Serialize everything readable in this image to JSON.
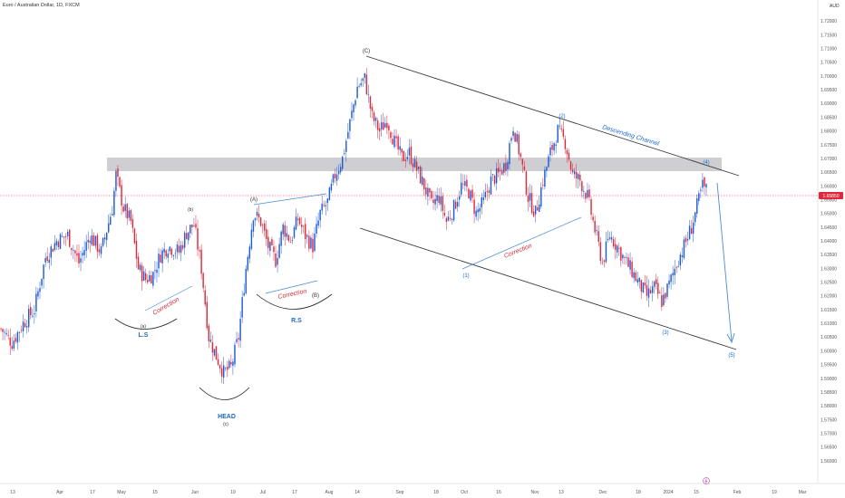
{
  "chart_data": {
    "type": "candlestick",
    "title": "Euro / Australian Dollar, 1D, FXCM",
    "currency": "AUD",
    "last_price": "1.65850",
    "ylim": [
      1.555,
      1.725
    ],
    "y_ticks": [
      "1.72000",
      "1.71500",
      "1.71000",
      "1.70500",
      "1.70000",
      "1.69500",
      "1.69000",
      "1.68500",
      "1.68000",
      "1.67500",
      "1.67000",
      "1.66500",
      "1.66000",
      "1.65500",
      "1.65000",
      "1.64500",
      "1.64000",
      "1.63500",
      "1.63000",
      "1.62500",
      "1.62000",
      "1.61500",
      "1.61000",
      "1.60500",
      "1.60000",
      "1.59500",
      "1.59000",
      "1.58500",
      "1.58000",
      "1.57500",
      "1.57000",
      "1.56500",
      "1.56000"
    ],
    "x_ticks": [
      "13",
      "Apr",
      "17",
      "May",
      "15",
      "Jun",
      "19",
      "Jul",
      "17",
      "Aug",
      "14",
      "Sep",
      "18",
      "Oct",
      "16",
      "Nov",
      "13",
      "Dec",
      "18",
      "2024",
      "15",
      "Feb",
      "19",
      "Mar"
    ],
    "colors": {
      "up": "#1e5bd6",
      "down": "#e0283c",
      "zone": "#c7c7cb",
      "line": "#3a3a3a",
      "trend": "#4a8ad8",
      "label_blue": "#1b6ac9",
      "label_red": "#d42a3a"
    },
    "annotations": {
      "ls": "L.S",
      "head": "HEAD",
      "rs": "R.S",
      "correction": "Correction",
      "descending_channel": "Descending Channel",
      "wave_a_small": "(a)",
      "wave_b_small": "(b)",
      "wave_c_small": "(c)",
      "wave_A": "(A)",
      "wave_B": "(B)",
      "wave_C": "(C)",
      "w1": "(1)",
      "w2": "(2)",
      "w3": "(3)",
      "w4": "(4)",
      "w5": "(5)"
    },
    "ohlc_keypoints": [
      [
        0,
        1.608
      ],
      [
        6,
        1.603
      ],
      [
        12,
        1.61
      ],
      [
        18,
        1.615
      ],
      [
        24,
        1.634
      ],
      [
        30,
        1.64
      ],
      [
        36,
        1.642
      ],
      [
        42,
        1.632
      ],
      [
        48,
        1.642
      ],
      [
        54,
        1.636
      ],
      [
        60,
        1.652
      ],
      [
        62,
        1.664
      ],
      [
        66,
        1.652
      ],
      [
        70,
        1.647
      ],
      [
        74,
        1.63
      ],
      [
        78,
        1.626
      ],
      [
        82,
        1.628
      ],
      [
        86,
        1.635
      ],
      [
        90,
        1.638
      ],
      [
        96,
        1.636
      ],
      [
        100,
        1.643
      ],
      [
        104,
        1.646
      ],
      [
        108,
        1.63
      ],
      [
        112,
        1.605
      ],
      [
        116,
        1.598
      ],
      [
        120,
        1.592
      ],
      [
        124,
        1.594
      ],
      [
        128,
        1.605
      ],
      [
        132,
        1.63
      ],
      [
        136,
        1.65
      ],
      [
        140,
        1.647
      ],
      [
        144,
        1.638
      ],
      [
        148,
        1.633
      ],
      [
        152,
        1.645
      ],
      [
        156,
        1.64
      ],
      [
        160,
        1.648
      ],
      [
        164,
        1.642
      ],
      [
        168,
        1.638
      ],
      [
        172,
        1.65
      ],
      [
        176,
        1.654
      ],
      [
        180,
        1.664
      ],
      [
        184,
        1.67
      ],
      [
        188,
        1.683
      ],
      [
        192,
        1.696
      ],
      [
        196,
        1.699
      ],
      [
        200,
        1.685
      ],
      [
        204,
        1.68
      ],
      [
        208,
        1.684
      ],
      [
        212,
        1.676
      ],
      [
        216,
        1.67
      ],
      [
        220,
        1.672
      ],
      [
        224,
        1.666
      ],
      [
        228,
        1.66
      ],
      [
        232,
        1.653
      ],
      [
        236,
        1.656
      ],
      [
        240,
        1.647
      ],
      [
        244,
        1.652
      ],
      [
        248,
        1.66
      ],
      [
        252,
        1.658
      ],
      [
        256,
        1.65
      ],
      [
        260,
        1.654
      ],
      [
        264,
        1.662
      ],
      [
        268,
        1.664
      ],
      [
        272,
        1.668
      ],
      [
        276,
        1.682
      ],
      [
        280,
        1.67
      ],
      [
        284,
        1.656
      ],
      [
        288,
        1.65
      ],
      [
        292,
        1.662
      ],
      [
        296,
        1.672
      ],
      [
        300,
        1.68
      ],
      [
        304,
        1.676
      ],
      [
        308,
        1.664
      ],
      [
        312,
        1.662
      ],
      [
        316,
        1.656
      ],
      [
        320,
        1.644
      ],
      [
        324,
        1.632
      ],
      [
        328,
        1.642
      ],
      [
        332,
        1.638
      ],
      [
        336,
        1.633
      ],
      [
        340,
        1.629
      ],
      [
        344,
        1.624
      ],
      [
        348,
        1.62
      ],
      [
        352,
        1.623
      ],
      [
        356,
        1.618
      ],
      [
        360,
        1.624
      ],
      [
        364,
        1.632
      ],
      [
        368,
        1.638
      ],
      [
        372,
        1.645
      ],
      [
        376,
        1.655
      ],
      [
        378,
        1.66
      ],
      [
        380,
        1.6585
      ]
    ],
    "projection": {
      "from_index": 380,
      "to_price": 1.607
    }
  }
}
